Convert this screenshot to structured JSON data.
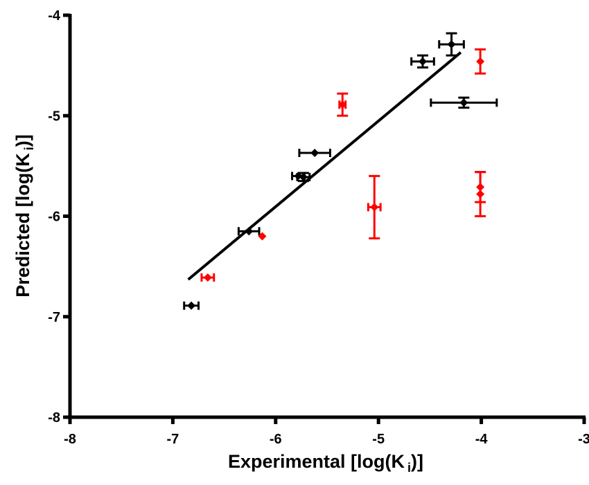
{
  "chart_data": {
    "type": "scatter",
    "xlabel": {
      "prefix": "Experimental [log(K",
      "sub": "i",
      "suffix": ")]"
    },
    "ylabel": {
      "prefix": "Predicted [log(K",
      "sub": "i",
      "suffix": ")]"
    },
    "xlim": [
      -8,
      -3
    ],
    "ylim": [
      -8,
      -4
    ],
    "xticks": [
      -8,
      -7,
      -6,
      -5,
      -4,
      -3
    ],
    "yticks": [
      -8,
      -7,
      -6,
      -5,
      -4
    ],
    "xtick_labels": [
      "-8",
      "-7",
      "-6",
      "-5",
      "-4",
      "-3"
    ],
    "ytick_labels": [
      "-8",
      "-7",
      "-6",
      "-5",
      "-4"
    ],
    "grid": false,
    "colors": {
      "training": "#000000",
      "test": "#ff0000",
      "fit": "#000000"
    },
    "series": [
      {
        "color": "#000000",
        "points": [
          {
            "x": -6.82,
            "y": -6.89,
            "xerr": 0.07,
            "yerr": 0
          },
          {
            "x": -6.26,
            "y": -6.15,
            "xerr": 0.1,
            "yerr": 0
          },
          {
            "x": -5.78,
            "y": -5.6,
            "xerr": 0.06,
            "yerr": 0
          },
          {
            "x": -5.73,
            "y": -5.61,
            "xerr": 0.06,
            "yerr": 0.04
          },
          {
            "x": -5.62,
            "y": -5.37,
            "xerr": 0.15,
            "yerr": 0
          },
          {
            "x": -4.57,
            "y": -4.46,
            "xerr": 0.11,
            "yerr": 0.06
          },
          {
            "x": -4.29,
            "y": -4.29,
            "xerr": 0.12,
            "yerr": 0.11
          },
          {
            "x": -4.17,
            "y": -4.87,
            "xerr": 0.32,
            "yerr": 0.05
          }
        ]
      },
      {
        "color": "#ff0000",
        "points": [
          {
            "x": -6.66,
            "y": -6.61,
            "xerr": 0.06,
            "yerr": 0
          },
          {
            "x": -6.13,
            "y": -6.2,
            "xerr": 0,
            "yerr": 0
          },
          {
            "x": -5.35,
            "y": -4.89,
            "xerr": 0.03,
            "yerr": 0.11
          },
          {
            "x": -5.04,
            "y": -5.91,
            "xerr": 0.06,
            "yerr": 0.31
          },
          {
            "x": -4.01,
            "y": -4.46,
            "xerr": 0,
            "yerr": 0.12
          },
          {
            "x": -4.01,
            "y": -5.71,
            "xerr": 0,
            "yerr": 0.15
          },
          {
            "x": -4.01,
            "y": -5.78,
            "xerr": 0,
            "yerr": 0.22
          }
        ]
      }
    ],
    "fit_line": {
      "x": [
        -6.85,
        -4.2
      ],
      "y": [
        -6.63,
        -4.37
      ]
    }
  }
}
